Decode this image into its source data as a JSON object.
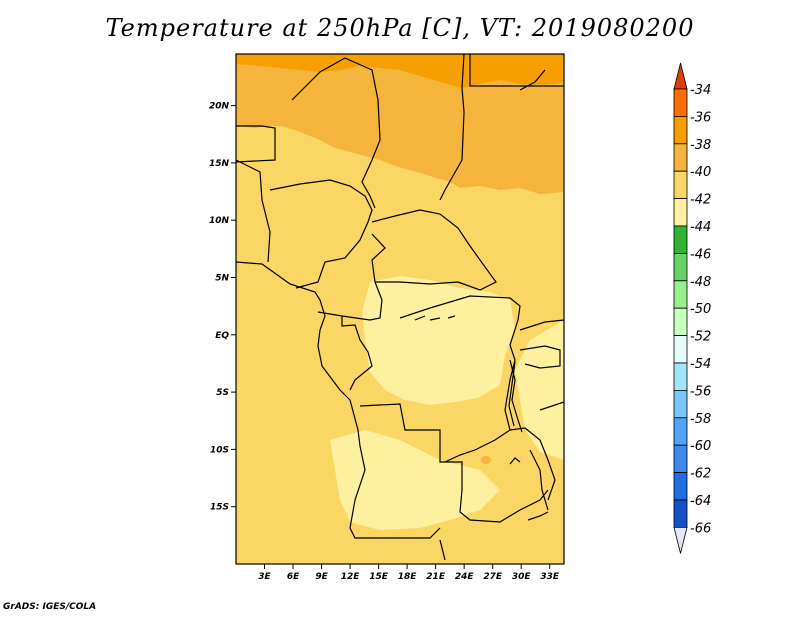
{
  "title": "Temperature at 250hPa [C], VT: 2019080200",
  "credit": "GrADS: IGES/COLA",
  "map": {
    "lat_ticks": [
      "20N",
      "15N",
      "10N",
      "5N",
      "EQ",
      "5S",
      "10S",
      "15S"
    ],
    "lat_values": [
      20,
      15,
      10,
      5,
      0,
      -5,
      -10,
      -15
    ],
    "lon_ticks": [
      "3E",
      "6E",
      "9E",
      "12E",
      "15E",
      "18E",
      "21E",
      "24E",
      "27E",
      "30E",
      "33E"
    ],
    "lon_values": [
      3,
      6,
      9,
      12,
      15,
      18,
      21,
      24,
      27,
      30,
      33
    ],
    "lon_range": [
      0,
      34.5
    ],
    "lat_range": [
      -20,
      24.5
    ]
  },
  "colorbar": {
    "labels": [
      "-34",
      "-36",
      "-38",
      "-40",
      "-42",
      "-44",
      "-46",
      "-48",
      "-50",
      "-52",
      "-54",
      "-56",
      "-58",
      "-60",
      "-62",
      "-64",
      "-66"
    ],
    "top_color": "#e03c00",
    "bottom_color": "#e6e6fa",
    "colors": [
      "#fa6e0a",
      "#f5a000",
      "#f5b43c",
      "#fad764",
      "#fff0a0",
      "#32b432",
      "#64d264",
      "#96f08c",
      "#c8ffbe",
      "#e6fafa",
      "#a0e6fa",
      "#78c8fa",
      "#50a5f5",
      "#3c8cf0",
      "#1e6ee6",
      "#1450c8",
      "#0a1e78"
    ]
  }
}
